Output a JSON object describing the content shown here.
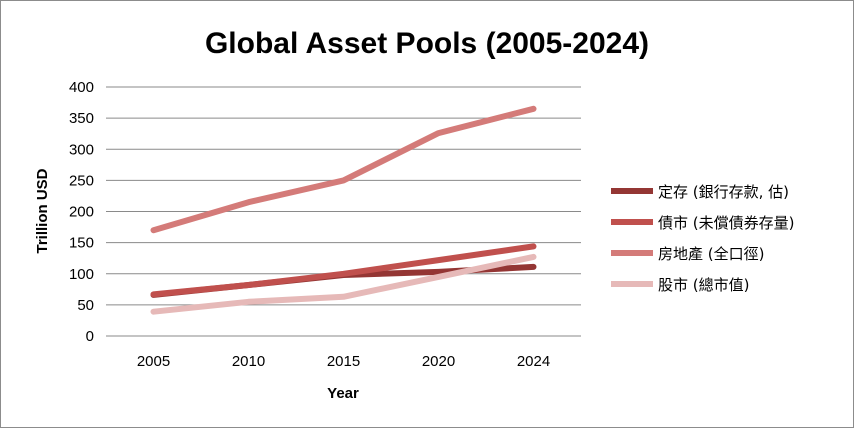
{
  "chart_data": {
    "type": "line",
    "title": "Global Asset Pools (2005-2024)",
    "xlabel": "Year",
    "ylabel": "Trillion USD",
    "x": [
      "2005",
      "2010",
      "2015",
      "2020",
      "2024"
    ],
    "ylim": [
      0,
      400
    ],
    "yticks": [
      0,
      50,
      100,
      150,
      200,
      250,
      300,
      350,
      400
    ],
    "grid": true,
    "legend_position": "right",
    "series": [
      {
        "name": "定存 (銀行存款, 估)",
        "values": [
          66,
          82,
          98,
          103,
          111
        ],
        "color": "#943634"
      },
      {
        "name": "債市 (未償債券存量)",
        "values": [
          67,
          82,
          100,
          122,
          144
        ],
        "color": "#c0504d"
      },
      {
        "name": "房地產 (全口徑)",
        "values": [
          170,
          215,
          250,
          326,
          365
        ],
        "color": "#d47b79"
      },
      {
        "name": "股市 (總市值)",
        "values": [
          39,
          55,
          63,
          95,
          127
        ],
        "color": "#e6b9b8"
      }
    ]
  }
}
